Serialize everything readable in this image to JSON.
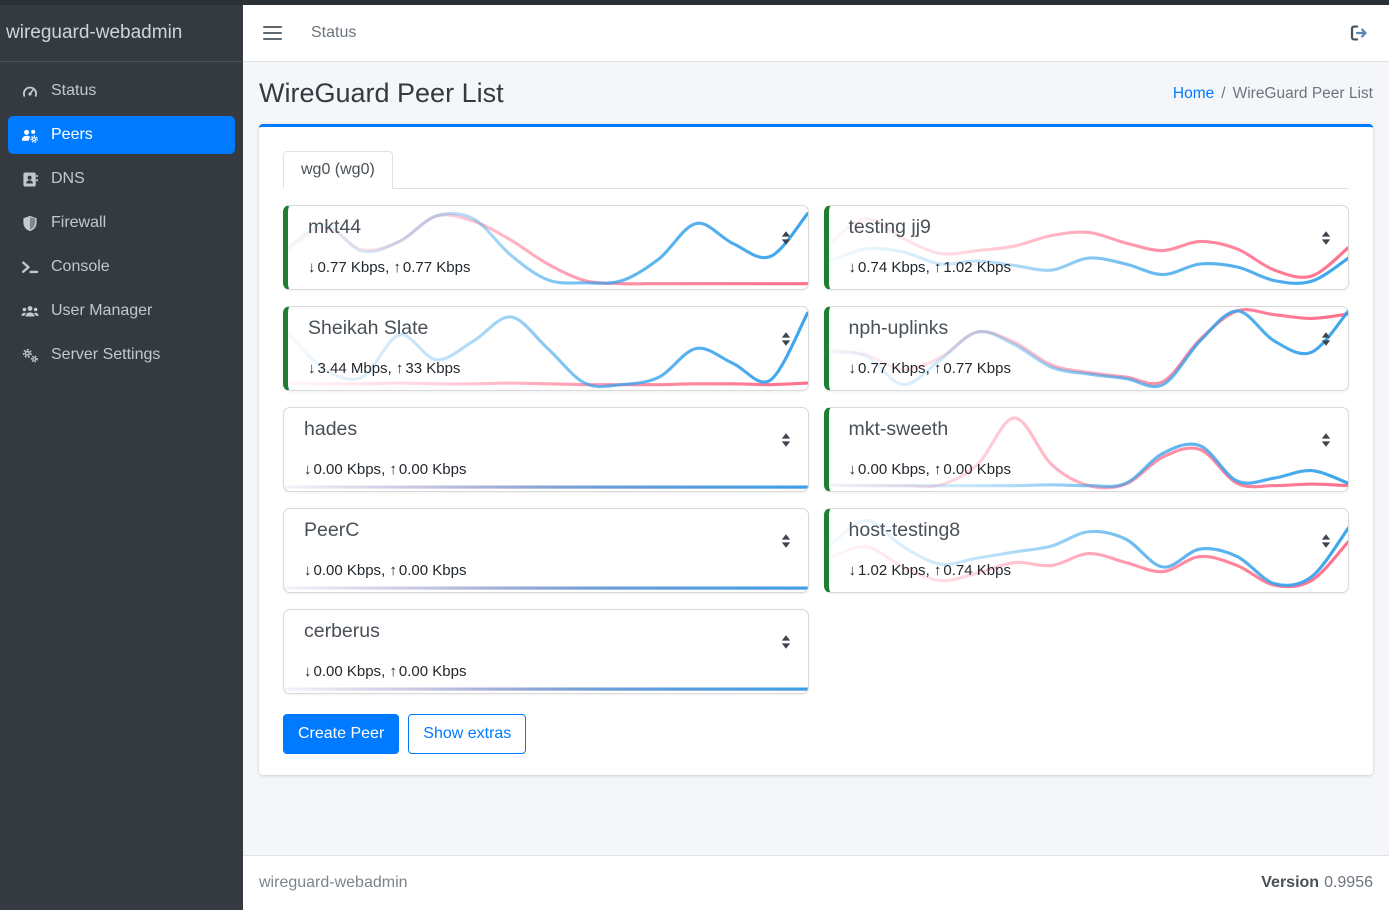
{
  "sidebar": {
    "brand": "wireguard-webadmin",
    "items": [
      {
        "label": "Status",
        "icon": "gauge-icon",
        "active": false
      },
      {
        "label": "Peers",
        "icon": "users-gear-icon",
        "active": true
      },
      {
        "label": "DNS",
        "icon": "address-book-icon",
        "active": false
      },
      {
        "label": "Firewall",
        "icon": "shield-icon",
        "active": false
      },
      {
        "label": "Console",
        "icon": "terminal-icon",
        "active": false
      },
      {
        "label": "User Manager",
        "icon": "users-icon",
        "active": false
      },
      {
        "label": "Server Settings",
        "icon": "gears-icon",
        "active": false
      }
    ]
  },
  "navbar": {
    "link": "Status"
  },
  "page": {
    "title": "WireGuard Peer List",
    "breadcrumb": {
      "home": "Home",
      "separator": "/",
      "current": "WireGuard Peer List"
    }
  },
  "tabs": [
    {
      "label": "wg0 (wg0)",
      "active": true
    }
  ],
  "peer_list": {
    "down_arrow": "↓",
    "up_arrow": "↑",
    "separator": ", ",
    "columns": [
      [
        {
          "name": "mkt44",
          "down": "0.77 Kbps",
          "up": "0.77 Kbps",
          "active": true,
          "spark": {
            "rx": [
              0.5,
              0.8,
              0.45,
              0.58,
              0.92,
              0.88,
              0.4,
              0.07,
              0.03,
              0.06,
              0.35,
              0.82,
              0.55,
              0.38,
              0.95
            ],
            "tx": [
              0.48,
              0.76,
              0.47,
              0.58,
              0.92,
              0.85,
              0.6,
              0.28,
              0.06,
              0.02,
              0.02,
              0.02,
              0.02,
              0.02,
              0.02
            ]
          }
        },
        {
          "name": "Sheikah Slate",
          "down": "3.44 Mbps",
          "up": "33 Kbps",
          "active": true,
          "spark": {
            "rx": [
              0.7,
              0.22,
              0.12,
              0.68,
              0.35,
              0.6,
              0.92,
              0.5,
              0.04,
              0.02,
              0.12,
              0.5,
              0.3,
              0.08,
              0.97
            ],
            "tx": [
              0.04,
              0.03,
              0.03,
              0.04,
              0.03,
              0.03,
              0.04,
              0.03,
              0.02,
              0.02,
              0.02,
              0.03,
              0.03,
              0.02,
              0.04
            ]
          }
        },
        {
          "name": "hades",
          "down": "0.00 Kbps",
          "up": "0.00 Kbps",
          "active": false,
          "spark": {
            "rx": [
              0,
              0,
              0,
              0,
              0,
              0,
              0,
              0,
              0,
              0,
              0,
              0,
              0,
              0,
              0
            ],
            "tx": [
              0,
              0,
              0,
              0,
              0,
              0,
              0,
              0,
              0,
              0,
              0,
              0,
              0,
              0,
              0
            ]
          }
        },
        {
          "name": "PeerC",
          "down": "0.00 Kbps",
          "up": "0.00 Kbps",
          "active": false,
          "spark": {
            "rx": [
              0,
              0,
              0,
              0,
              0,
              0,
              0,
              0,
              0,
              0,
              0,
              0,
              0,
              0,
              0
            ],
            "tx": [
              0,
              0,
              0,
              0,
              0,
              0,
              0,
              0,
              0,
              0,
              0,
              0,
              0,
              0,
              0
            ]
          }
        },
        {
          "name": "cerberus",
          "down": "0.00 Kbps",
          "up": "0.00 Kbps",
          "active": false,
          "spark": {
            "rx": [
              0,
              0,
              0,
              0,
              0,
              0,
              0,
              0,
              0,
              0,
              0,
              0,
              0,
              0,
              0
            ],
            "tx": [
              0,
              0,
              0,
              0,
              0,
              0,
              0,
              0,
              0,
              0,
              0,
              0,
              0,
              0,
              0
            ]
          }
        }
      ],
      [
        {
          "name": "testing jj9",
          "down": "0.74 Kbps",
          "up": "1.02 Kbps",
          "active": true,
          "spark": {
            "rx": [
              0.32,
              0.48,
              0.44,
              0.28,
              0.32,
              0.26,
              0.2,
              0.36,
              0.28,
              0.14,
              0.28,
              0.24,
              0.06,
              0.05,
              0.36
            ],
            "tx": [
              0.55,
              0.88,
              0.62,
              0.42,
              0.46,
              0.52,
              0.66,
              0.7,
              0.56,
              0.46,
              0.58,
              0.48,
              0.2,
              0.12,
              0.5
            ]
          }
        },
        {
          "name": "nph-uplinks",
          "down": "0.77 Kbps",
          "up": "0.77 Kbps",
          "active": true,
          "spark": {
            "rx": [
              0.45,
              0.4,
              0.02,
              0.35,
              0.72,
              0.55,
              0.25,
              0.16,
              0.1,
              0.02,
              0.6,
              1.0,
              0.6,
              0.45,
              1.0
            ],
            "tx": [
              0.48,
              0.42,
              0.22,
              0.38,
              0.72,
              0.58,
              0.28,
              0.18,
              0.12,
              0.06,
              0.62,
              1.0,
              0.95,
              0.9,
              0.96
            ]
          }
        },
        {
          "name": "mkt-sweeth",
          "down": "0.00 Kbps",
          "up": "0.00 Kbps",
          "active": true,
          "spark": {
            "rx": [
              0.02,
              0.02,
              0.02,
              0.02,
              0.02,
              0.02,
              0.03,
              0.02,
              0.05,
              0.45,
              0.55,
              0.08,
              0.12,
              0.22,
              0.05
            ],
            "tx": [
              0.03,
              0.02,
              0.02,
              0.03,
              0.3,
              0.92,
              0.3,
              0.02,
              0.04,
              0.4,
              0.5,
              0.05,
              0.02,
              0.04,
              0.02
            ]
          }
        },
        {
          "name": "host-testing8",
          "down": "1.02 Kbps",
          "up": "0.74 Kbps",
          "active": true,
          "spark": {
            "rx": [
              0.55,
              0.9,
              0.55,
              0.32,
              0.4,
              0.48,
              0.56,
              0.75,
              0.65,
              0.28,
              0.52,
              0.42,
              0.06,
              0.15,
              0.8
            ],
            "tx": [
              0.4,
              0.55,
              0.28,
              0.1,
              0.2,
              0.34,
              0.3,
              0.46,
              0.34,
              0.22,
              0.42,
              0.3,
              0.04,
              0.1,
              0.62
            ]
          }
        }
      ]
    ]
  },
  "actions": {
    "create_peer": "Create Peer",
    "show_extras": "Show extras"
  },
  "footer": {
    "brand": "wireguard-webadmin",
    "version_label": "Version",
    "version_value": "0.9956"
  },
  "colors": {
    "accent": "#007bff",
    "active_peer_border": "#1e7e34",
    "spark_download": "#36a2eb",
    "spark_upload": "#ff6c8a",
    "sidebar_bg": "#343a40"
  }
}
